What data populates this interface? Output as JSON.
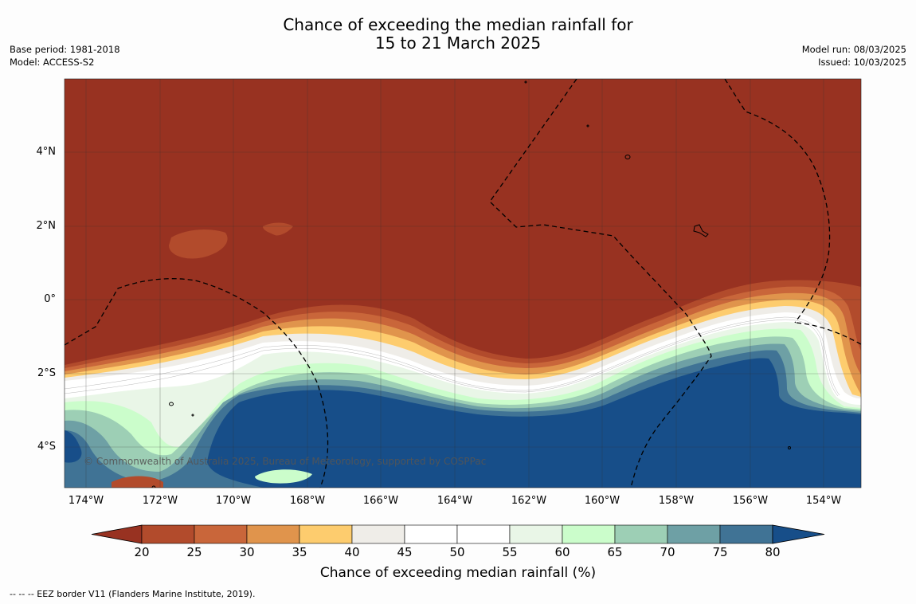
{
  "title": {
    "line1": "Chance of exceeding the median rainfall for",
    "line2": "15 to 21 March 2025"
  },
  "meta_left": {
    "base_period": "Base period: 1981-2018",
    "model": "Model: ACCESS-S2"
  },
  "meta_right": {
    "model_run": "Model run: 08/03/2025",
    "issued": "Issued: 10/03/2025"
  },
  "lat_labels": [
    "4°N",
    "2°N",
    "0°",
    "2°S",
    "4°S"
  ],
  "lon_labels": [
    "174°W",
    "172°W",
    "170°W",
    "168°W",
    "166°W",
    "164°W",
    "162°W",
    "160°W",
    "158°W",
    "156°W",
    "154°W"
  ],
  "copyright": "© Commonwealth of Australia 2025, Bureau of Meteorology, supported by COSPPac",
  "colorbar": {
    "ticks": [
      "20",
      "25",
      "30",
      "35",
      "40",
      "45",
      "50",
      "55",
      "60",
      "65",
      "70",
      "75",
      "80"
    ],
    "colors": [
      "#983221",
      "#b24b2c",
      "#c9663a",
      "#e0944c",
      "#fdcc6e",
      "#efede8",
      "#ffffff",
      "#ffffff",
      "#e9f6e7",
      "#cbfdcb",
      "#9dcfb5",
      "#6ea0a5",
      "#407395",
      "#174e89"
    ],
    "label": "Chance of exceeding median rainfall (%)"
  },
  "eez_note": "--  --  -- EEZ border V11 (Flanders Marine Institute, 2019)."
}
